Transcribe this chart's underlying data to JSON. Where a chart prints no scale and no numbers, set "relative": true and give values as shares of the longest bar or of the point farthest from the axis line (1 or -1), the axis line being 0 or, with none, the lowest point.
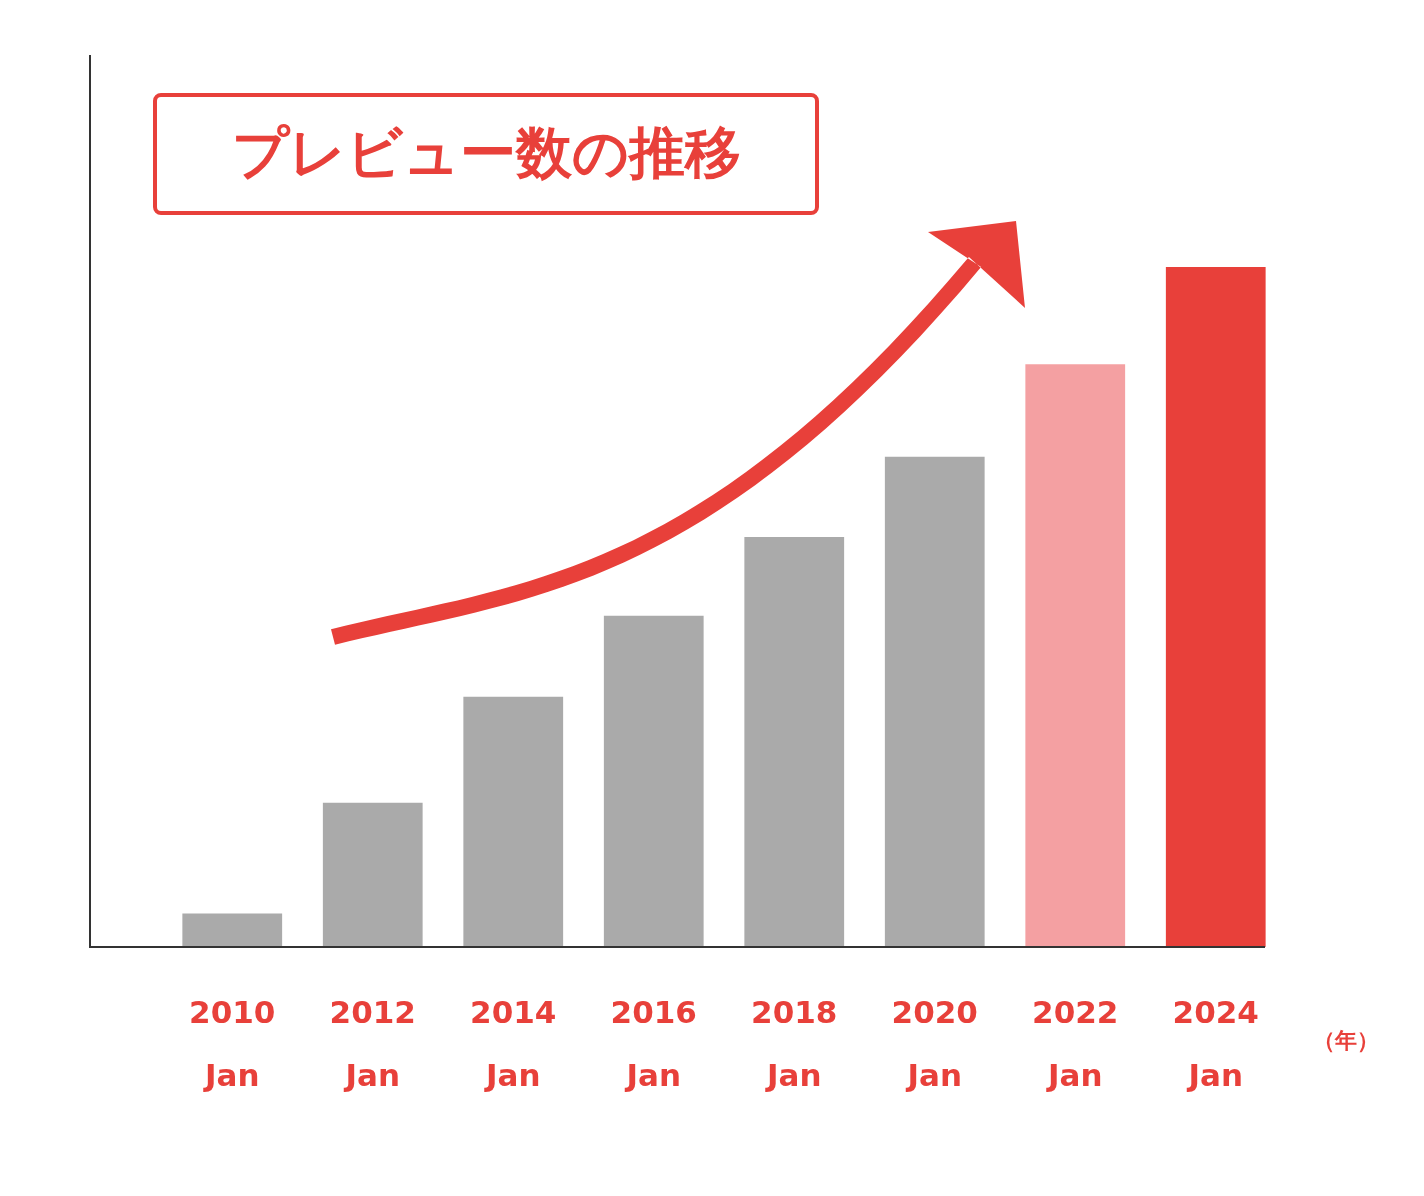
{
  "chart_data": {
    "type": "bar",
    "title": "プレビュー数の推移",
    "xlabel": "（年）",
    "relative": true,
    "categories": [
      "2010\nJan",
      "2012\nJan",
      "2014\nJan",
      "2016\nJan",
      "2018\nJan",
      "2020\nJan",
      "2022\nJan",
      "2024\nJan"
    ],
    "values": [
      0.049,
      0.212,
      0.368,
      0.487,
      0.603,
      0.721,
      0.857,
      1
    ],
    "colors": [
      "#aaaaaa",
      "#aaaaaa",
      "#aaaaaa",
      "#aaaaaa",
      "#aaaaaa",
      "#aaaaaa",
      "#f4a0a2",
      "#e8403a"
    ],
    "grid": false,
    "legend": false
  }
}
